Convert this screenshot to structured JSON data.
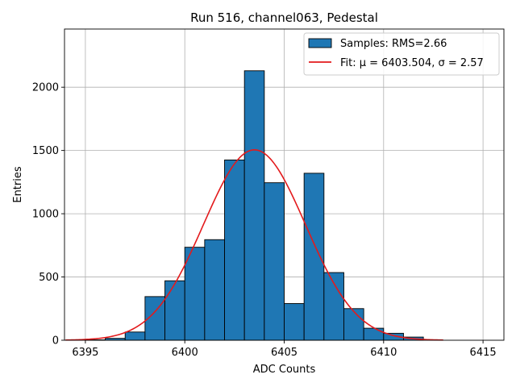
{
  "chart_data": {
    "type": "bar",
    "title": "Run 516, channel063, Pedestal",
    "xlabel": "ADC Counts",
    "ylabel": "Entries",
    "xlim": [
      6393.95,
      6416.05
    ],
    "ylim": [
      0,
      2460
    ],
    "xticks": [
      6395,
      6400,
      6405,
      6410,
      6415
    ],
    "yticks": [
      0,
      500,
      1000,
      1500,
      2000
    ],
    "grid": true,
    "legend_position": "top-right",
    "histogram": {
      "name": "Samples: RMS=2.66",
      "bin_width": 1,
      "bin_left_edges": [
        6395,
        6396,
        6397,
        6398,
        6399,
        6400,
        6401,
        6402,
        6403,
        6404,
        6405,
        6406,
        6407,
        6408,
        6409,
        6410,
        6411
      ],
      "values": [
        3,
        15,
        65,
        345,
        470,
        735,
        795,
        1425,
        2130,
        1245,
        290,
        1320,
        535,
        250,
        95,
        55,
        25
      ],
      "color": "#1f77b4"
    },
    "fit": {
      "name": "Fit: μ = 6403.504, σ = 2.57",
      "type": "gaussian",
      "mu": 6403.504,
      "sigma": 2.57,
      "amplitude": 1505,
      "x_range": [
        6394,
        6413
      ],
      "color": "#e31a1c"
    }
  }
}
